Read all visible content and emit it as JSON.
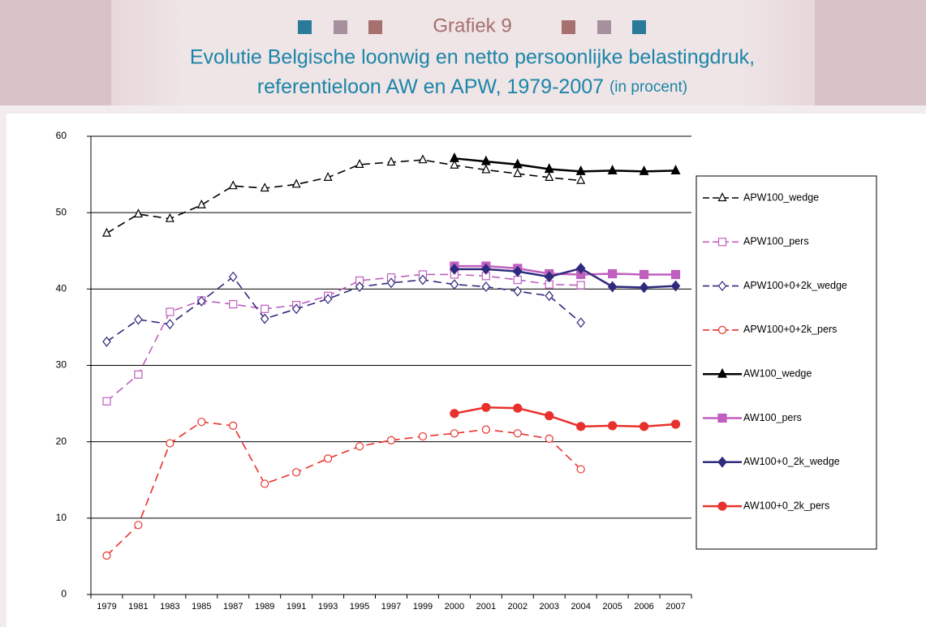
{
  "chart_data": {
    "type": "line",
    "heading": "Grafiek 9",
    "title": [
      "Evolutie Belgische loonwig en netto persoonlijke belastingdruk,",
      "referentieloon AW en APW, 1979-2007"
    ],
    "title_note": "(in procent)",
    "categories": [
      "1979",
      "1981",
      "1983",
      "1985",
      "1987",
      "1989",
      "1991",
      "1993",
      "1995",
      "1997",
      "1999",
      "2000",
      "2001",
      "2002",
      "2003",
      "2004",
      "2005",
      "2006",
      "2007"
    ],
    "ylim": [
      0,
      60
    ],
    "yticks": [
      0,
      10,
      20,
      30,
      40,
      50,
      60
    ],
    "grid": true,
    "legend": "right",
    "series": [
      {
        "name": "APW100_wedge",
        "color": "#000000",
        "style": "dashed",
        "marker": "triangle",
        "filled": false,
        "values": [
          47.3,
          49.8,
          49.2,
          51.0,
          53.5,
          53.2,
          53.7,
          54.6,
          56.3,
          56.6,
          56.9,
          56.2,
          55.6,
          55.1,
          54.6,
          54.2,
          null,
          null,
          null
        ]
      },
      {
        "name": "APW100_pers",
        "color": "#bf5fbf",
        "style": "dashed",
        "marker": "square",
        "filled": false,
        "values": [
          25.3,
          28.8,
          37.0,
          38.5,
          38.0,
          37.4,
          37.9,
          39.1,
          41.1,
          41.5,
          41.9,
          41.9,
          41.7,
          41.2,
          40.6,
          40.5,
          null,
          null,
          null
        ]
      },
      {
        "name": "APW100+0+2k_wedge",
        "color": "#2e2a7c",
        "style": "dashed",
        "marker": "diamond",
        "filled": false,
        "values": [
          33.1,
          36.0,
          35.4,
          38.4,
          41.6,
          36.1,
          37.4,
          38.7,
          40.3,
          40.8,
          41.2,
          40.6,
          40.3,
          39.7,
          39.1,
          35.6,
          null,
          null,
          null
        ]
      },
      {
        "name": "APW100+0+2k_pers",
        "color": "#e8312c",
        "style": "dashed",
        "marker": "circle",
        "filled": false,
        "values": [
          5.1,
          9.1,
          19.8,
          22.6,
          22.1,
          14.5,
          16.0,
          17.8,
          19.4,
          20.2,
          20.7,
          21.1,
          21.6,
          21.1,
          20.4,
          16.4,
          null,
          null,
          null
        ]
      },
      {
        "name": "AW100_wedge",
        "color": "#000000",
        "style": "solid",
        "marker": "triangle",
        "filled": true,
        "values": [
          null,
          null,
          null,
          null,
          null,
          null,
          null,
          null,
          null,
          null,
          null,
          57.1,
          56.7,
          56.3,
          55.7,
          55.4,
          55.5,
          55.4,
          55.5
        ]
      },
      {
        "name": "AW100_pers",
        "color": "#bf5fbf",
        "style": "solid",
        "marker": "square",
        "filled": true,
        "values": [
          null,
          null,
          null,
          null,
          null,
          null,
          null,
          null,
          null,
          null,
          null,
          43.0,
          43.0,
          42.7,
          42.0,
          41.9,
          42.0,
          41.9,
          41.9
        ]
      },
      {
        "name": "AW100+0_2k_wedge",
        "color": "#2e2a7c",
        "style": "solid",
        "marker": "diamond",
        "filled": true,
        "values": [
          null,
          null,
          null,
          null,
          null,
          null,
          null,
          null,
          null,
          null,
          null,
          42.6,
          42.6,
          42.3,
          41.6,
          42.7,
          40.3,
          40.2,
          40.4
        ]
      },
      {
        "name": "AW100+0_2k_pers",
        "color": "#e8312c",
        "style": "solid",
        "marker": "circle",
        "filled": true,
        "values": [
          null,
          null,
          null,
          null,
          null,
          null,
          null,
          null,
          null,
          null,
          null,
          23.7,
          24.5,
          24.4,
          23.4,
          22.0,
          22.1,
          22.0,
          22.3
        ]
      }
    ]
  }
}
